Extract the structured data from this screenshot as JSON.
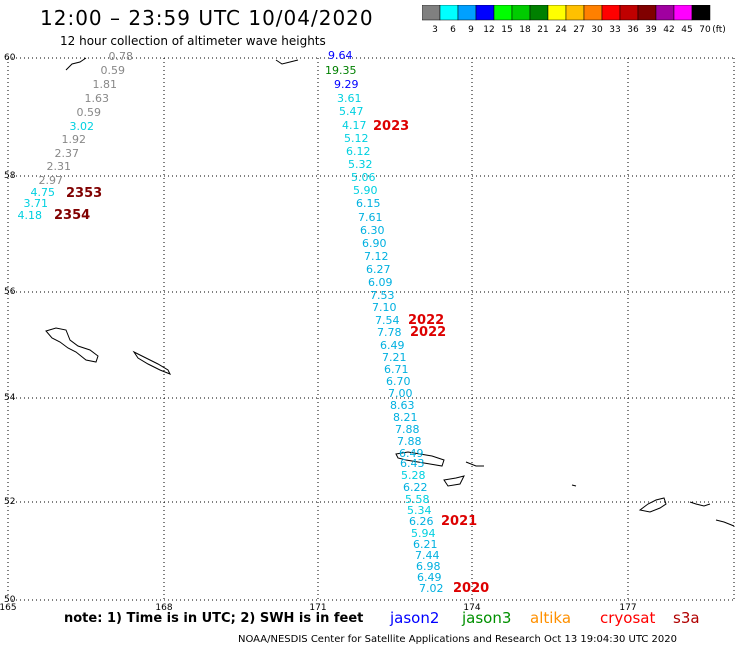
{
  "header": {
    "title": "12:00 – 23:59 UTC 10/04/2020",
    "subtitle": "12 hour collection of altimeter wave heights"
  },
  "legend": {
    "unit": "(ft)",
    "bins": [
      {
        "label": "3",
        "color": "#808080"
      },
      {
        "label": "6",
        "color": "#00ffff"
      },
      {
        "label": "9",
        "color": "#00a0ff"
      },
      {
        "label": "12",
        "color": "#0000ff"
      },
      {
        "label": "15",
        "color": "#00ff00"
      },
      {
        "label": "18",
        "color": "#00cc00"
      },
      {
        "label": "21",
        "color": "#008000"
      },
      {
        "label": "24",
        "color": "#ffff00"
      },
      {
        "label": "27",
        "color": "#ffc000"
      },
      {
        "label": "30",
        "color": "#ff8000"
      },
      {
        "label": "33",
        "color": "#ff0000"
      },
      {
        "label": "36",
        "color": "#c00000"
      },
      {
        "label": "39",
        "color": "#800000"
      },
      {
        "label": "42",
        "color": "#a000a0"
      },
      {
        "label": "45",
        "color": "#ff00ff"
      },
      {
        "label": "70",
        "color": "#000000"
      }
    ]
  },
  "axes": {
    "lat_labels": [
      "60",
      "58",
      "56",
      "54",
      "52",
      "50"
    ],
    "lon_labels": [
      "165",
      "168",
      "171",
      "174",
      "177"
    ]
  },
  "tracks": {
    "west": [
      {
        "text": "0.78",
        "color": "#888888"
      },
      {
        "text": "0.59",
        "color": "#888888"
      },
      {
        "text": "1.81",
        "color": "#888888"
      },
      {
        "text": "1.63",
        "color": "#888888"
      },
      {
        "text": "0.59",
        "color": "#888888"
      },
      {
        "text": "3.02",
        "color": "#00d0e0"
      },
      {
        "text": "1.92",
        "color": "#888888"
      },
      {
        "text": "2.37",
        "color": "#888888"
      },
      {
        "text": "2.31",
        "color": "#888888"
      },
      {
        "text": "2.97",
        "color": "#888888"
      },
      {
        "text": "4.75",
        "color": "#00d0e0"
      },
      {
        "text": "3.71",
        "color": "#00d0e0"
      },
      {
        "text": "4.18",
        "color": "#00d0e0"
      }
    ],
    "east": [
      {
        "text": "9.64",
        "color": "#0000ff"
      },
      {
        "text": "19.35",
        "color": "#008000"
      },
      {
        "text": "9.29",
        "color": "#0000ff"
      },
      {
        "text": "3.61",
        "color": "#00d0e0"
      },
      {
        "text": "5.47",
        "color": "#00d0e0"
      },
      {
        "text": "4.17",
        "color": "#00d0e0"
      },
      {
        "text": "5.12",
        "color": "#00d0e0"
      },
      {
        "text": "6.12",
        "color": "#00d0e0"
      },
      {
        "text": "5.32",
        "color": "#00d0e0"
      },
      {
        "text": "5.06",
        "color": "#00d0e0"
      },
      {
        "text": "5.90",
        "color": "#00d0e0"
      },
      {
        "text": "6.15",
        "color": "#00b0e0"
      },
      {
        "text": "7.61",
        "color": "#00b0e0"
      },
      {
        "text": "6.30",
        "color": "#00b0e0"
      },
      {
        "text": "6.90",
        "color": "#00b0e0"
      },
      {
        "text": "7.12",
        "color": "#00b0e0"
      },
      {
        "text": "6.27",
        "color": "#00b0e0"
      },
      {
        "text": "6.09",
        "color": "#00b0e0"
      },
      {
        "text": "7.53",
        "color": "#00b0e0"
      },
      {
        "text": "7.10",
        "color": "#00b0e0"
      },
      {
        "text": "7.54",
        "color": "#00b0e0"
      },
      {
        "text": "7.78",
        "color": "#00b0e0"
      },
      {
        "text": "6.49",
        "color": "#00b0e0"
      },
      {
        "text": "7.21",
        "color": "#00b0e0"
      },
      {
        "text": "6.71",
        "color": "#00b0e0"
      },
      {
        "text": "6.70",
        "color": "#00b0e0"
      },
      {
        "text": "7.00",
        "color": "#00b0e0"
      },
      {
        "text": "8.63",
        "color": "#00b0e0"
      },
      {
        "text": "8.21",
        "color": "#00b0e0"
      },
      {
        "text": "7.88",
        "color": "#00b0e0"
      },
      {
        "text": "7.88",
        "color": "#00b0e0"
      },
      {
        "text": "6.49",
        "color": "#00b0e0"
      },
      {
        "text": "6.43",
        "color": "#00b0e0"
      },
      {
        "text": "5.28",
        "color": "#00d0e0"
      },
      {
        "text": "6.22",
        "color": "#00b0e0"
      },
      {
        "text": "5.58",
        "color": "#00d0e0"
      },
      {
        "text": "5.34",
        "color": "#00d0e0"
      },
      {
        "text": "6.26",
        "color": "#00b0e0"
      },
      {
        "text": "5.94",
        "color": "#00d0e0"
      },
      {
        "text": "6.21",
        "color": "#00b0e0"
      },
      {
        "text": "7.44",
        "color": "#00b0e0"
      },
      {
        "text": "6.98",
        "color": "#00b0e0"
      },
      {
        "text": "6.49",
        "color": "#00b0e0"
      },
      {
        "text": "7.02",
        "color": "#00b0e0"
      }
    ]
  },
  "time_tags": [
    {
      "text": "2353",
      "color": "#800000"
    },
    {
      "text": "2354",
      "color": "#800000"
    },
    {
      "text": "2023",
      "color": "#dd0000"
    },
    {
      "text": "2022",
      "color": "#dd0000"
    },
    {
      "text": "2022",
      "color": "#dd0000"
    },
    {
      "text": "2021",
      "color": "#dd0000"
    },
    {
      "text": "2020",
      "color": "#dd0000"
    }
  ],
  "footer": {
    "note": "note: 1) Time is in UTC; 2) SWH is in feet",
    "satellites": [
      {
        "name": "jason2",
        "color": "#0000ff"
      },
      {
        "name": "jason3",
        "color": "#009000"
      },
      {
        "name": "altika",
        "color": "#ff9000"
      },
      {
        "name": "cryosat",
        "color": "#ff0000"
      },
      {
        "name": "s3a",
        "color": "#b00000"
      }
    ],
    "credit": "NOAA/NESDIS Center for Satellite Applications and Research    Oct 13 19:04:30 UTC 2020"
  }
}
